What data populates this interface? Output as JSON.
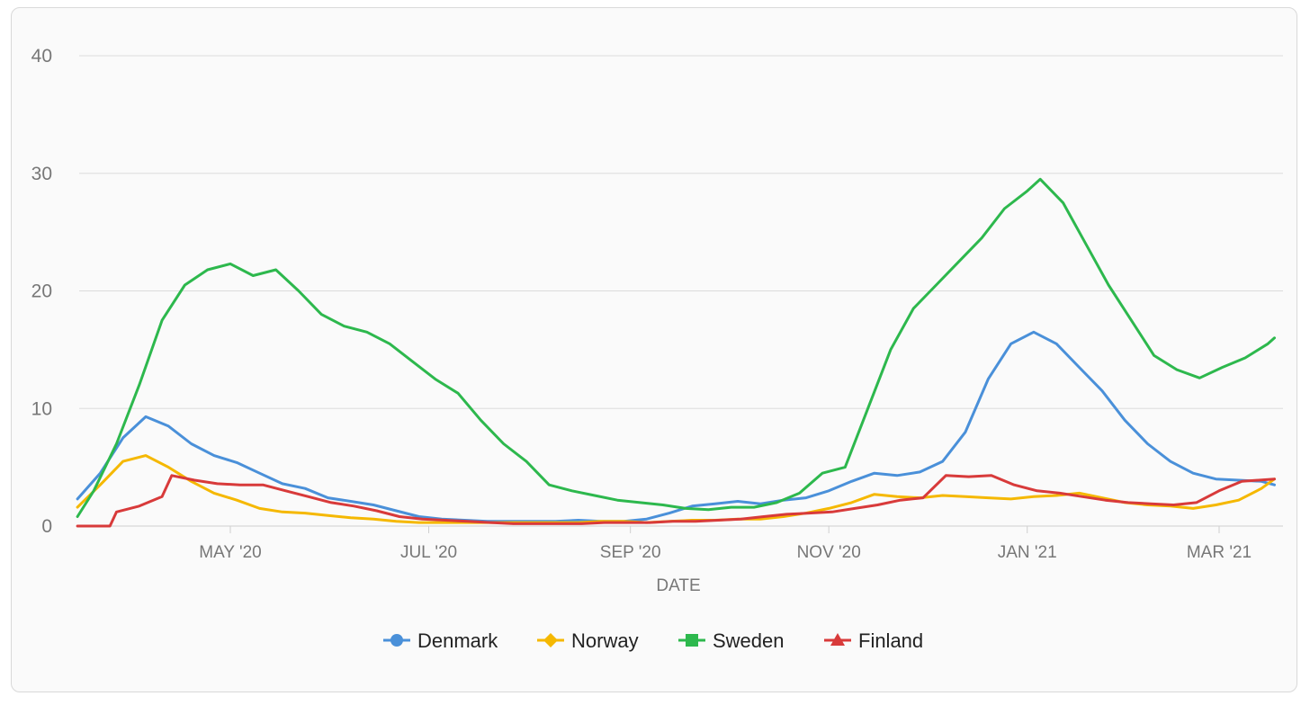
{
  "chart_data": {
    "type": "line",
    "xlabel": "DATE",
    "ylabel": "",
    "x_range": [
      "2020-03-15",
      "2021-03-20"
    ],
    "ylim": [
      0,
      40
    ],
    "y_ticks": [
      "0",
      "10",
      "20",
      "30",
      "40"
    ],
    "x_ticks": [
      {
        "label": "MAY '20",
        "date": "2020-05-01"
      },
      {
        "label": "JUL '20",
        "date": "2020-07-01"
      },
      {
        "label": "SEP '20",
        "date": "2020-09-01"
      },
      {
        "label": "NOV '20",
        "date": "2020-11-01"
      },
      {
        "label": "JAN '21",
        "date": "2021-01-01"
      },
      {
        "label": "MAR '21",
        "date": "2021-03-01"
      }
    ],
    "grid": true,
    "legend_position": "bottom",
    "series": [
      {
        "name": "Denmark",
        "color": "#4a90d9",
        "marker": "circle",
        "points": [
          [
            "2020-03-15",
            2.3
          ],
          [
            "2020-03-22",
            4.5
          ],
          [
            "2020-03-29",
            7.5
          ],
          [
            "2020-04-05",
            9.3
          ],
          [
            "2020-04-12",
            8.5
          ],
          [
            "2020-04-19",
            7.0
          ],
          [
            "2020-04-26",
            6.0
          ],
          [
            "2020-05-03",
            5.4
          ],
          [
            "2020-05-10",
            4.5
          ],
          [
            "2020-05-17",
            3.6
          ],
          [
            "2020-05-24",
            3.2
          ],
          [
            "2020-05-31",
            2.4
          ],
          [
            "2020-06-07",
            2.1
          ],
          [
            "2020-06-14",
            1.8
          ],
          [
            "2020-06-21",
            1.3
          ],
          [
            "2020-06-28",
            0.8
          ],
          [
            "2020-07-05",
            0.6
          ],
          [
            "2020-07-12",
            0.5
          ],
          [
            "2020-07-19",
            0.4
          ],
          [
            "2020-07-26",
            0.4
          ],
          [
            "2020-08-02",
            0.4
          ],
          [
            "2020-08-09",
            0.4
          ],
          [
            "2020-08-16",
            0.5
          ],
          [
            "2020-08-23",
            0.4
          ],
          [
            "2020-08-30",
            0.4
          ],
          [
            "2020-09-06",
            0.6
          ],
          [
            "2020-09-13",
            1.1
          ],
          [
            "2020-09-20",
            1.7
          ],
          [
            "2020-09-27",
            1.9
          ],
          [
            "2020-10-04",
            2.1
          ],
          [
            "2020-10-11",
            1.9
          ],
          [
            "2020-10-18",
            2.2
          ],
          [
            "2020-10-25",
            2.4
          ],
          [
            "2020-11-01",
            3.0
          ],
          [
            "2020-11-08",
            3.8
          ],
          [
            "2020-11-15",
            4.5
          ],
          [
            "2020-11-22",
            4.3
          ],
          [
            "2020-11-29",
            4.6
          ],
          [
            "2020-12-06",
            5.5
          ],
          [
            "2020-12-13",
            8.0
          ],
          [
            "2020-12-20",
            12.5
          ],
          [
            "2020-12-27",
            15.5
          ],
          [
            "2021-01-03",
            16.5
          ],
          [
            "2021-01-10",
            15.5
          ],
          [
            "2021-01-17",
            13.5
          ],
          [
            "2021-01-24",
            11.5
          ],
          [
            "2021-01-31",
            9.0
          ],
          [
            "2021-02-07",
            7.0
          ],
          [
            "2021-02-14",
            5.5
          ],
          [
            "2021-02-21",
            4.5
          ],
          [
            "2021-02-28",
            4.0
          ],
          [
            "2021-03-07",
            3.9
          ],
          [
            "2021-03-14",
            3.8
          ],
          [
            "2021-03-18",
            3.5
          ]
        ]
      },
      {
        "name": "Norway",
        "color": "#f5b800",
        "marker": "diamond",
        "points": [
          [
            "2020-03-15",
            1.6
          ],
          [
            "2020-03-22",
            3.5
          ],
          [
            "2020-03-29",
            5.5
          ],
          [
            "2020-04-05",
            6.0
          ],
          [
            "2020-04-12",
            5.0
          ],
          [
            "2020-04-19",
            3.8
          ],
          [
            "2020-04-26",
            2.8
          ],
          [
            "2020-05-03",
            2.2
          ],
          [
            "2020-05-10",
            1.5
          ],
          [
            "2020-05-17",
            1.2
          ],
          [
            "2020-05-24",
            1.1
          ],
          [
            "2020-05-31",
            0.9
          ],
          [
            "2020-06-07",
            0.7
          ],
          [
            "2020-06-14",
            0.6
          ],
          [
            "2020-06-21",
            0.4
          ],
          [
            "2020-06-28",
            0.3
          ],
          [
            "2020-07-05",
            0.3
          ],
          [
            "2020-07-12",
            0.3
          ],
          [
            "2020-07-19",
            0.3
          ],
          [
            "2020-07-26",
            0.3
          ],
          [
            "2020-08-02",
            0.3
          ],
          [
            "2020-08-09",
            0.3
          ],
          [
            "2020-08-16",
            0.3
          ],
          [
            "2020-08-23",
            0.4
          ],
          [
            "2020-08-30",
            0.4
          ],
          [
            "2020-09-06",
            0.3
          ],
          [
            "2020-09-13",
            0.4
          ],
          [
            "2020-09-20",
            0.5
          ],
          [
            "2020-09-27",
            0.5
          ],
          [
            "2020-10-04",
            0.6
          ],
          [
            "2020-10-11",
            0.6
          ],
          [
            "2020-10-18",
            0.8
          ],
          [
            "2020-10-25",
            1.1
          ],
          [
            "2020-11-01",
            1.5
          ],
          [
            "2020-11-08",
            2.0
          ],
          [
            "2020-11-15",
            2.7
          ],
          [
            "2020-11-22",
            2.5
          ],
          [
            "2020-11-29",
            2.4
          ],
          [
            "2020-12-06",
            2.6
          ],
          [
            "2020-12-13",
            2.5
          ],
          [
            "2020-12-20",
            2.4
          ],
          [
            "2020-12-27",
            2.3
          ],
          [
            "2021-01-03",
            2.5
          ],
          [
            "2021-01-10",
            2.6
          ],
          [
            "2021-01-17",
            2.8
          ],
          [
            "2021-01-24",
            2.4
          ],
          [
            "2021-01-31",
            2.0
          ],
          [
            "2021-02-07",
            1.8
          ],
          [
            "2021-02-14",
            1.7
          ],
          [
            "2021-02-21",
            1.5
          ],
          [
            "2021-02-28",
            1.8
          ],
          [
            "2021-03-07",
            2.2
          ],
          [
            "2021-03-14",
            3.2
          ],
          [
            "2021-03-18",
            4.0
          ]
        ]
      },
      {
        "name": "Sweden",
        "color": "#2db84d",
        "marker": "square",
        "points": [
          [
            "2020-03-15",
            0.8
          ],
          [
            "2020-03-20",
            3.0
          ],
          [
            "2020-03-27",
            7.0
          ],
          [
            "2020-04-03",
            12.0
          ],
          [
            "2020-04-10",
            17.5
          ],
          [
            "2020-04-17",
            20.5
          ],
          [
            "2020-04-24",
            21.8
          ],
          [
            "2020-05-01",
            22.3
          ],
          [
            "2020-05-08",
            21.3
          ],
          [
            "2020-05-15",
            21.8
          ],
          [
            "2020-05-22",
            20.0
          ],
          [
            "2020-05-29",
            18.0
          ],
          [
            "2020-06-05",
            17.0
          ],
          [
            "2020-06-12",
            16.5
          ],
          [
            "2020-06-19",
            15.5
          ],
          [
            "2020-06-26",
            14.0
          ],
          [
            "2020-07-03",
            12.5
          ],
          [
            "2020-07-10",
            11.3
          ],
          [
            "2020-07-17",
            9.0
          ],
          [
            "2020-07-24",
            7.0
          ],
          [
            "2020-07-31",
            5.5
          ],
          [
            "2020-08-07",
            3.5
          ],
          [
            "2020-08-14",
            3.0
          ],
          [
            "2020-08-21",
            2.6
          ],
          [
            "2020-08-28",
            2.2
          ],
          [
            "2020-09-04",
            2.0
          ],
          [
            "2020-09-11",
            1.8
          ],
          [
            "2020-09-18",
            1.5
          ],
          [
            "2020-09-25",
            1.4
          ],
          [
            "2020-10-02",
            1.6
          ],
          [
            "2020-10-09",
            1.6
          ],
          [
            "2020-10-16",
            2.0
          ],
          [
            "2020-10-23",
            2.8
          ],
          [
            "2020-10-30",
            4.5
          ],
          [
            "2020-11-06",
            5.0
          ],
          [
            "2020-11-13",
            10.0
          ],
          [
            "2020-11-20",
            15.0
          ],
          [
            "2020-11-27",
            18.5
          ],
          [
            "2020-12-04",
            20.5
          ],
          [
            "2020-12-11",
            22.5
          ],
          [
            "2020-12-18",
            24.5
          ],
          [
            "2020-12-25",
            27.0
          ],
          [
            "2021-01-01",
            28.5
          ],
          [
            "2021-01-05",
            29.5
          ],
          [
            "2021-01-12",
            27.5
          ],
          [
            "2021-01-19",
            24.0
          ],
          [
            "2021-01-26",
            20.5
          ],
          [
            "2021-02-02",
            17.5
          ],
          [
            "2021-02-09",
            14.5
          ],
          [
            "2021-02-16",
            13.3
          ],
          [
            "2021-02-23",
            12.6
          ],
          [
            "2021-03-02",
            13.5
          ],
          [
            "2021-03-09",
            14.3
          ],
          [
            "2021-03-16",
            15.5
          ],
          [
            "2021-03-18",
            16.0
          ]
        ]
      },
      {
        "name": "Finland",
        "color": "#d83a3a",
        "marker": "triangle",
        "points": [
          [
            "2020-03-15",
            0.0
          ],
          [
            "2020-03-25",
            0.0
          ],
          [
            "2020-03-27",
            1.2
          ],
          [
            "2020-04-03",
            1.7
          ],
          [
            "2020-04-10",
            2.5
          ],
          [
            "2020-04-13",
            4.3
          ],
          [
            "2020-04-20",
            3.9
          ],
          [
            "2020-04-27",
            3.6
          ],
          [
            "2020-05-04",
            3.5
          ],
          [
            "2020-05-11",
            3.5
          ],
          [
            "2020-05-18",
            3.0
          ],
          [
            "2020-05-25",
            2.5
          ],
          [
            "2020-06-01",
            2.0
          ],
          [
            "2020-06-08",
            1.7
          ],
          [
            "2020-06-15",
            1.3
          ],
          [
            "2020-06-22",
            0.8
          ],
          [
            "2020-06-29",
            0.6
          ],
          [
            "2020-07-06",
            0.5
          ],
          [
            "2020-07-13",
            0.4
          ],
          [
            "2020-07-20",
            0.3
          ],
          [
            "2020-07-27",
            0.2
          ],
          [
            "2020-08-03",
            0.2
          ],
          [
            "2020-08-10",
            0.2
          ],
          [
            "2020-08-17",
            0.2
          ],
          [
            "2020-08-24",
            0.3
          ],
          [
            "2020-08-31",
            0.3
          ],
          [
            "2020-09-07",
            0.3
          ],
          [
            "2020-09-14",
            0.4
          ],
          [
            "2020-09-21",
            0.4
          ],
          [
            "2020-09-28",
            0.5
          ],
          [
            "2020-10-05",
            0.6
          ],
          [
            "2020-10-12",
            0.8
          ],
          [
            "2020-10-19",
            1.0
          ],
          [
            "2020-10-26",
            1.1
          ],
          [
            "2020-11-02",
            1.2
          ],
          [
            "2020-11-09",
            1.5
          ],
          [
            "2020-11-16",
            1.8
          ],
          [
            "2020-11-23",
            2.2
          ],
          [
            "2020-11-30",
            2.4
          ],
          [
            "2020-12-07",
            4.3
          ],
          [
            "2020-12-14",
            4.2
          ],
          [
            "2020-12-21",
            4.3
          ],
          [
            "2020-12-28",
            3.5
          ],
          [
            "2021-01-04",
            3.0
          ],
          [
            "2021-01-11",
            2.8
          ],
          [
            "2021-01-18",
            2.5
          ],
          [
            "2021-01-25",
            2.2
          ],
          [
            "2021-02-01",
            2.0
          ],
          [
            "2021-02-08",
            1.9
          ],
          [
            "2021-02-15",
            1.8
          ],
          [
            "2021-02-22",
            2.0
          ],
          [
            "2021-03-01",
            3.0
          ],
          [
            "2021-03-08",
            3.8
          ],
          [
            "2021-03-18",
            4.0
          ]
        ]
      }
    ]
  }
}
